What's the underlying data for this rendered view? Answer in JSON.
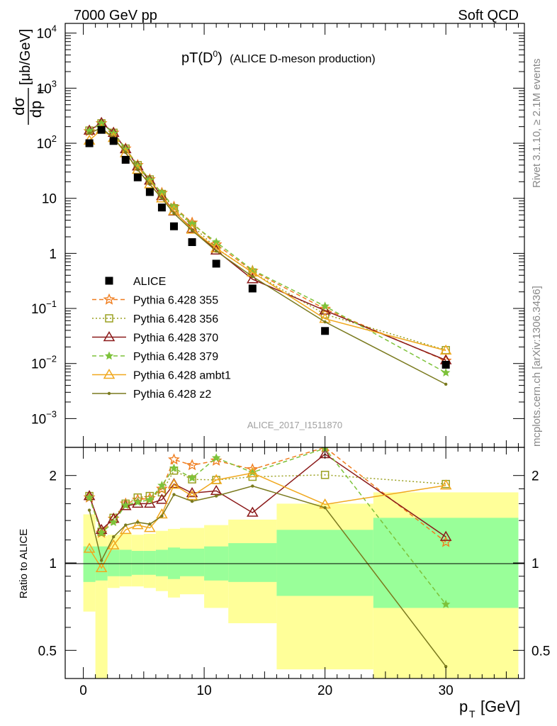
{
  "header": {
    "left": "7000 GeV pp",
    "right": "Soft QCD",
    "side_top": "Rivet 3.1.10, ≥ 2.1M events",
    "side_bottom": "mcplots.cern.ch [arXiv:1306.3436]"
  },
  "chart_data": [
    {
      "type": "line",
      "panel": "main",
      "title": "pT(D0) (ALICE D-meson production)",
      "watermark": "ALICE_2017_I1511870",
      "xlabel": "p_T [GeV]",
      "ylabel": "dσ/dp_T [μb/GeV]",
      "yscale": "log",
      "ylim": [
        0.0003,
        15000
      ],
      "xlim": [
        -1.5,
        36.5
      ],
      "yticks": [
        {
          "v": 0.001,
          "base": "10",
          "exp": "−3"
        },
        {
          "v": 0.01,
          "base": "10",
          "exp": "−2"
        },
        {
          "v": 0.1,
          "base": "10",
          "exp": "−1"
        },
        {
          "v": 1,
          "base": "1",
          "exp": ""
        },
        {
          "v": 10,
          "base": "10",
          "exp": ""
        },
        {
          "v": 100,
          "base": "10",
          "exp": "2"
        },
        {
          "v": 1000,
          "base": "10",
          "exp": "3"
        },
        {
          "v": 10000,
          "base": "10",
          "exp": "4"
        }
      ],
      "x": [
        0.5,
        1.5,
        2.5,
        3.5,
        4.5,
        5.5,
        6.5,
        7.5,
        9,
        11,
        14,
        20,
        30
      ],
      "legend_position": "lower-left",
      "series": [
        {
          "name": "ALICE",
          "color": "#000000",
          "dash": "",
          "marker": "square",
          "values": [
            100,
            175,
            110,
            50,
            24,
            13,
            6.8,
            3.1,
            1.6,
            0.65,
            0.23,
            0.039,
            0.0095
          ]
        },
        {
          "name": "Pythia 6.428 355",
          "color": "#f07d1e",
          "dash": "6,4",
          "marker": "star",
          "values": [
            165,
            230,
            155,
            80,
            40,
            22,
            12.5,
            7,
            3.6,
            1.45,
            0.48,
            0.098,
            0.0112
          ]
        },
        {
          "name": "Pythia 6.428 356",
          "color": "#9aa020",
          "dash": "2,3",
          "marker": "open-square",
          "values": [
            170,
            230,
            155,
            80,
            40,
            22,
            12,
            6.6,
            3.2,
            1.25,
            0.45,
            0.078,
            0.0175
          ]
        },
        {
          "name": "Pythia 6.428 370",
          "color": "#8b1a1a",
          "dash": "",
          "marker": "open-triangle",
          "values": [
            170,
            235,
            155,
            78,
            38,
            21,
            11,
            5.8,
            2.8,
            1.13,
            0.34,
            0.092,
            0.0115
          ]
        },
        {
          "name": "Pythia 6.428 379",
          "color": "#7dc23a",
          "dash": "6,4",
          "marker": "small-star",
          "values": [
            168,
            230,
            152,
            78,
            39,
            21.5,
            12.5,
            6.9,
            3.4,
            1.6,
            0.5,
            0.11,
            0.0068
          ]
        },
        {
          "name": "Pythia 6.428 ambt1",
          "color": "#f0a81e",
          "dash": "",
          "marker": "open-triangle",
          "values": [
            112,
            178,
            125,
            66,
            33,
            18,
            10,
            5.9,
            2.7,
            1.23,
            0.45,
            0.065,
            0.0172
          ]
        },
        {
          "name": "Pythia 6.428 z2",
          "color": "#7a7a1e",
          "dash": "",
          "marker": "dot",
          "values": [
            152,
            190,
            125,
            68,
            33,
            18,
            10,
            5.3,
            2.6,
            1.1,
            0.38,
            0.057,
            0.0042
          ]
        }
      ]
    },
    {
      "type": "line",
      "panel": "ratio",
      "ylabel": "Ratio to ALICE",
      "xlabel": "p_T [GeV]",
      "yscale": "log",
      "ylim": [
        0.4,
        2.5
      ],
      "xlim": [
        -1.5,
        36.5
      ],
      "yticks": [
        {
          "v": 0.5,
          "label": "0.5"
        },
        {
          "v": 1,
          "label": "1"
        },
        {
          "v": 2,
          "label": "2"
        }
      ],
      "xticks": [
        0,
        10,
        20,
        30
      ],
      "x": [
        0.5,
        1.5,
        2.5,
        3.5,
        4.5,
        5.5,
        6.5,
        7.5,
        9,
        11,
        14,
        20,
        30
      ],
      "bins": [
        [
          0,
          1
        ],
        [
          1,
          2
        ],
        [
          2,
          3
        ],
        [
          3,
          4
        ],
        [
          4,
          5
        ],
        [
          5,
          6
        ],
        [
          6,
          7
        ],
        [
          7,
          8
        ],
        [
          8,
          10
        ],
        [
          10,
          12
        ],
        [
          12,
          16
        ],
        [
          16,
          24
        ],
        [
          24,
          36
        ]
      ],
      "band_inner": {
        "color": "#99ff99",
        "lo": [
          0.86,
          0.87,
          0.9,
          0.9,
          0.91,
          0.91,
          0.9,
          0.88,
          0.9,
          0.87,
          0.86,
          0.77,
          0.7
        ],
        "hi": [
          1.14,
          1.14,
          1.11,
          1.11,
          1.1,
          1.1,
          1.11,
          1.13,
          1.12,
          1.14,
          1.17,
          1.3,
          1.43
        ]
      },
      "band_outer": {
        "color": "#ffff99",
        "lo": [
          0.68,
          0.35,
          0.82,
          0.83,
          0.83,
          0.82,
          0.8,
          0.76,
          0.78,
          0.7,
          0.62,
          0.43,
          0.35
        ],
        "hi": [
          1.47,
          1.24,
          1.25,
          1.27,
          1.25,
          1.26,
          1.29,
          1.31,
          1.32,
          1.35,
          1.41,
          1.6,
          1.75
        ]
      },
      "series": [
        {
          "name": "Pythia 6.428 355",
          "color": "#f07d1e",
          "dash": "6,4",
          "marker": "star",
          "values": [
            1.68,
            1.27,
            1.42,
            1.6,
            1.65,
            1.67,
            1.8,
            2.27,
            2.17,
            2.25,
            2.1,
            2.5,
            1.18
          ]
        },
        {
          "name": "Pythia 6.428 356",
          "color": "#9aa020",
          "dash": "2,3",
          "marker": "open-square",
          "values": [
            1.7,
            1.28,
            1.43,
            1.6,
            1.68,
            1.7,
            1.75,
            2.08,
            1.94,
            1.93,
            1.98,
            2.01,
            1.87
          ]
        },
        {
          "name": "Pythia 6.428 370",
          "color": "#8b1a1a",
          "dash": "",
          "marker": "open-triangle",
          "values": [
            1.7,
            1.3,
            1.42,
            1.57,
            1.6,
            1.6,
            1.65,
            1.87,
            1.74,
            1.77,
            1.49,
            2.37,
            1.23
          ]
        },
        {
          "name": "Pythia 6.428 379",
          "color": "#7dc23a",
          "dash": "6,4",
          "marker": "small-star",
          "values": [
            1.68,
            1.27,
            1.38,
            1.58,
            1.62,
            1.65,
            1.85,
            2.12,
            1.96,
            2.3,
            2.05,
            2.48,
            0.72
          ]
        },
        {
          "name": "Pythia 6.428 ambt1",
          "color": "#f0a81e",
          "dash": "",
          "marker": "open-triangle",
          "values": [
            1.12,
            0.96,
            1.15,
            1.3,
            1.35,
            1.32,
            1.47,
            1.86,
            1.7,
            1.93,
            2.04,
            1.59,
            1.85
          ]
        },
        {
          "name": "Pythia 6.428 z2",
          "color": "#7a7a1e",
          "dash": "",
          "marker": "dot",
          "values": [
            1.52,
            1.02,
            1.23,
            1.35,
            1.38,
            1.36,
            1.45,
            1.72,
            1.63,
            1.7,
            1.84,
            1.55,
            0.44
          ]
        }
      ]
    }
  ]
}
